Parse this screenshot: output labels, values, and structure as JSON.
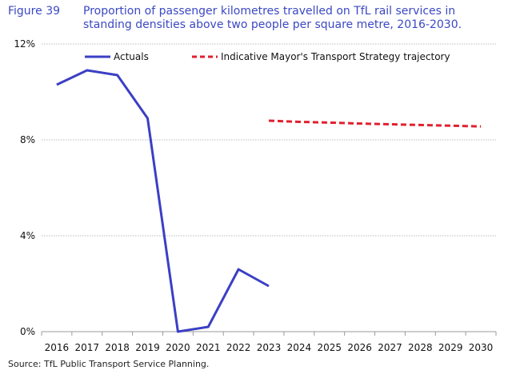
{
  "figure": {
    "number": "Figure 39",
    "title": "Proportion of passenger kilometres travelled on TfL rail services in standing densities above two people per square metre, 2016-2030."
  },
  "source": "Source: TfL Public Transport Service Planning.",
  "colors": {
    "actuals": "#3b3fc4",
    "trajectory": "#e0202e",
    "grid": "#bbbbbb",
    "title": "#3b48c4"
  },
  "chart_data": {
    "type": "line",
    "categories": [
      "2016",
      "2017",
      "2018",
      "2019",
      "2020",
      "2021",
      "2022",
      "2023",
      "2024",
      "2025",
      "2026",
      "2027",
      "2028",
      "2029",
      "2030"
    ],
    "y_tick_labels": [
      "0%",
      "4%",
      "8%",
      "12%"
    ],
    "y_ticks": [
      0,
      4,
      8,
      12
    ],
    "ylim": [
      0,
      12
    ],
    "grid": true,
    "legend_position": "top",
    "series": [
      {
        "name": "Actuals",
        "style": "solid",
        "values": [
          10.3,
          10.9,
          10.7,
          8.9,
          0.0,
          0.2,
          2.6,
          1.9,
          null,
          null,
          null,
          null,
          null,
          null,
          null
        ]
      },
      {
        "name": "Indicative Mayor's Transport Strategy trajectory",
        "style": "dashed",
        "values": [
          null,
          null,
          null,
          null,
          null,
          null,
          null,
          8.8,
          8.75,
          8.72,
          8.68,
          8.65,
          8.62,
          8.59,
          8.56
        ]
      }
    ]
  }
}
